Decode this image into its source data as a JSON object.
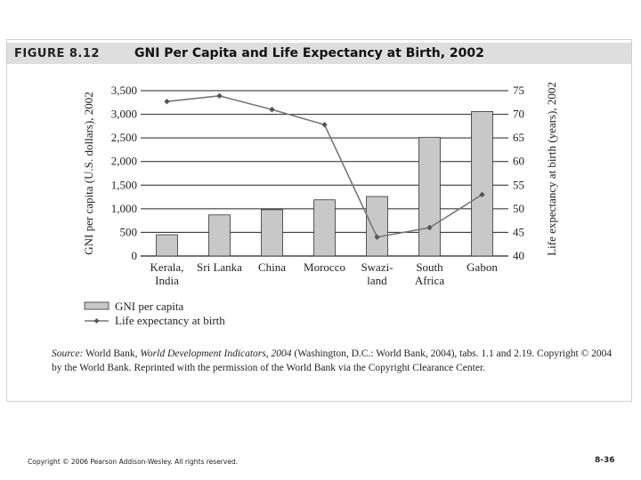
{
  "figure": {
    "label": "FIGURE 8.12",
    "title": "GNI Per Capita and Life Expectancy at Birth, 2002"
  },
  "chart_data": {
    "type": "bar+line",
    "categories": [
      [
        "Kerala,",
        "India"
      ],
      [
        "Sri Lanka"
      ],
      [
        "China"
      ],
      [
        "Morocco"
      ],
      [
        "Swazi-",
        "land"
      ],
      [
        "South",
        "Africa"
      ],
      [
        "Gabon"
      ]
    ],
    "series": [
      {
        "name": "GNI per capita",
        "type": "bar",
        "axis": "left",
        "values": [
          450,
          870,
          980,
          1190,
          1260,
          2510,
          3060
        ]
      },
      {
        "name": "Life expectancy at birth",
        "type": "line",
        "axis": "right",
        "values": [
          72.7,
          73.9,
          71,
          67.8,
          44,
          46,
          53
        ]
      }
    ],
    "left_axis": {
      "label": "GNI per capita (U.S. dollars), 2002",
      "ylim": [
        0,
        3500
      ],
      "ticks": [
        0,
        500,
        1000,
        1500,
        2000,
        2500,
        3000,
        3500
      ],
      "tick_labels": [
        "0",
        "500",
        "1,000",
        "1,500",
        "2,000",
        "2,500",
        "3,000",
        "3,500"
      ]
    },
    "right_axis": {
      "label": "Life expectancy at birth (years), 2002",
      "ylim": [
        40,
        75
      ],
      "ticks": [
        40,
        45,
        50,
        55,
        60,
        65,
        70,
        75
      ],
      "tick_labels": [
        "40",
        "45",
        "50",
        "55",
        "60",
        "65",
        "70",
        "75"
      ]
    },
    "legend": [
      {
        "label": "GNI per capita",
        "kind": "bar"
      },
      {
        "label": "Life expectancy at birth",
        "kind": "line"
      }
    ],
    "grid": true,
    "colors": {
      "bar_fill": "#c8c8c8",
      "bar_stroke": "#333333",
      "line": "#777777",
      "marker": "#555555",
      "grid": "#222222"
    }
  },
  "source": {
    "prefix": "Source:",
    "text_1": " World Bank, ",
    "italic_title": "World Development Indicators, 2004",
    "text_2": " (Washington, D.C.: World Bank, 2004), tabs. 1.1 and 2.19. Copyright © 2004 by the World Bank. Reprinted with the permission of the World Bank via the Copyright Clearance Center."
  },
  "footer": {
    "copyright": "Copyright © 2006 Pearson Addison-Wesley. All rights reserved.",
    "page": "8-36"
  }
}
